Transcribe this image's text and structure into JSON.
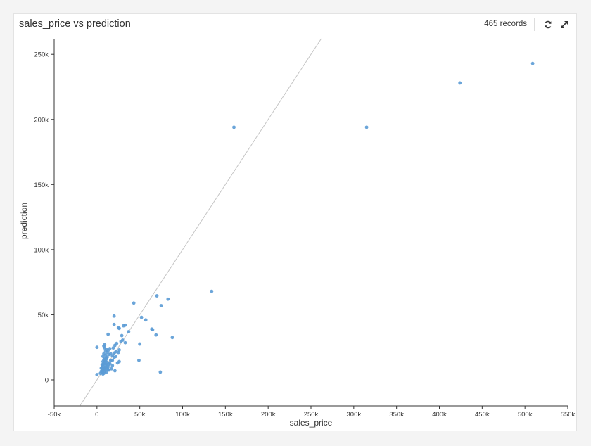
{
  "header": {
    "title": "sales_price vs prediction",
    "records": "465 records",
    "refresh_icon": "refresh-icon",
    "expand_icon": "expand-icon"
  },
  "colors": {
    "point": "#5b9bd5",
    "diagonal": "#c4c4c4",
    "axis": "#333333"
  },
  "chart_data": {
    "type": "scatter",
    "title": "sales_price vs prediction",
    "xlabel": "sales_price",
    "ylabel": "prediction",
    "xlim": [
      -50000,
      550000
    ],
    "ylim": [
      -20000,
      262000
    ],
    "x_ticks": [
      -50000,
      0,
      50000,
      100000,
      150000,
      200000,
      250000,
      300000,
      350000,
      400000,
      450000,
      500000,
      550000
    ],
    "x_tick_labels": [
      "-50k",
      "0",
      "50k",
      "100k",
      "150k",
      "200k",
      "250k",
      "300k",
      "350k",
      "400k",
      "450k",
      "500k",
      "550k"
    ],
    "y_ticks": [
      0,
      50000,
      100000,
      150000,
      200000,
      250000
    ],
    "y_tick_labels": [
      "0",
      "50k",
      "100k",
      "150k",
      "200k",
      "250k"
    ],
    "grid": false,
    "reference_line": "y = x",
    "points": [
      [
        509000,
        243000
      ],
      [
        424000,
        228000
      ],
      [
        315000,
        194000
      ],
      [
        160000,
        194000
      ],
      [
        134000,
        68000
      ],
      [
        70000,
        64500
      ],
      [
        83000,
        62000
      ],
      [
        43000,
        59000
      ],
      [
        75000,
        57000
      ],
      [
        20000,
        49000
      ],
      [
        52000,
        48000
      ],
      [
        57000,
        46000
      ],
      [
        20000,
        42500
      ],
      [
        33000,
        42000
      ],
      [
        31000,
        41500
      ],
      [
        25000,
        40000
      ],
      [
        26000,
        39500
      ],
      [
        64000,
        39000
      ],
      [
        65000,
        38500
      ],
      [
        37000,
        37000
      ],
      [
        13000,
        35000
      ],
      [
        69000,
        34500
      ],
      [
        29000,
        34000
      ],
      [
        88000,
        32500
      ],
      [
        30000,
        30500
      ],
      [
        28000,
        29500
      ],
      [
        33000,
        28500
      ],
      [
        23000,
        28000
      ],
      [
        50000,
        27500
      ],
      [
        9000,
        27000
      ],
      [
        21000,
        26500
      ],
      [
        0,
        25000
      ],
      [
        9000,
        24500
      ],
      [
        15000,
        24000
      ],
      [
        11000,
        23500
      ],
      [
        26000,
        23000
      ],
      [
        10000,
        22000
      ],
      [
        22000,
        21500
      ],
      [
        12000,
        21000
      ],
      [
        20000,
        20500
      ],
      [
        8000,
        20000
      ],
      [
        14000,
        19500
      ],
      [
        10000,
        19000
      ],
      [
        18000,
        18500
      ],
      [
        7000,
        18000
      ],
      [
        12000,
        17500
      ],
      [
        20000,
        17000
      ],
      [
        9000,
        16500
      ],
      [
        11000,
        16000
      ],
      [
        8000,
        15500
      ],
      [
        16000,
        15000
      ],
      [
        49000,
        15000
      ],
      [
        10000,
        14500
      ],
      [
        7000,
        14000
      ],
      [
        26000,
        14000
      ],
      [
        12000,
        13500
      ],
      [
        9000,
        13000
      ],
      [
        24000,
        13000
      ],
      [
        8000,
        12500
      ],
      [
        11000,
        12000
      ],
      [
        14000,
        12000
      ],
      [
        6000,
        11500
      ],
      [
        10000,
        11000
      ],
      [
        18000,
        11000
      ],
      [
        7000,
        10500
      ],
      [
        13000,
        10000
      ],
      [
        9000,
        9500
      ],
      [
        5000,
        9000
      ],
      [
        12000,
        9000
      ],
      [
        8000,
        8500
      ],
      [
        17000,
        8500
      ],
      [
        6000,
        8000
      ],
      [
        10000,
        7500
      ],
      [
        14000,
        7500
      ],
      [
        7000,
        7000
      ],
      [
        21000,
        7000
      ],
      [
        5000,
        6500
      ],
      [
        9000,
        6500
      ],
      [
        11000,
        6000
      ],
      [
        74000,
        6000
      ],
      [
        6000,
        5500
      ],
      [
        8000,
        5000
      ],
      [
        4000,
        5000
      ],
      [
        7000,
        4500
      ],
      [
        0,
        4000
      ],
      [
        10000,
        9000
      ],
      [
        12000,
        10500
      ],
      [
        15000,
        12500
      ],
      [
        18000,
        15000
      ],
      [
        22000,
        18000
      ],
      [
        25000,
        21000
      ],
      [
        16000,
        20000
      ],
      [
        13000,
        22500
      ],
      [
        19000,
        24500
      ],
      [
        8000,
        26000
      ],
      [
        11000,
        17000
      ],
      [
        9000,
        15000
      ],
      [
        7000,
        12000
      ],
      [
        6000,
        9500
      ],
      [
        13000,
        8000
      ]
    ]
  }
}
